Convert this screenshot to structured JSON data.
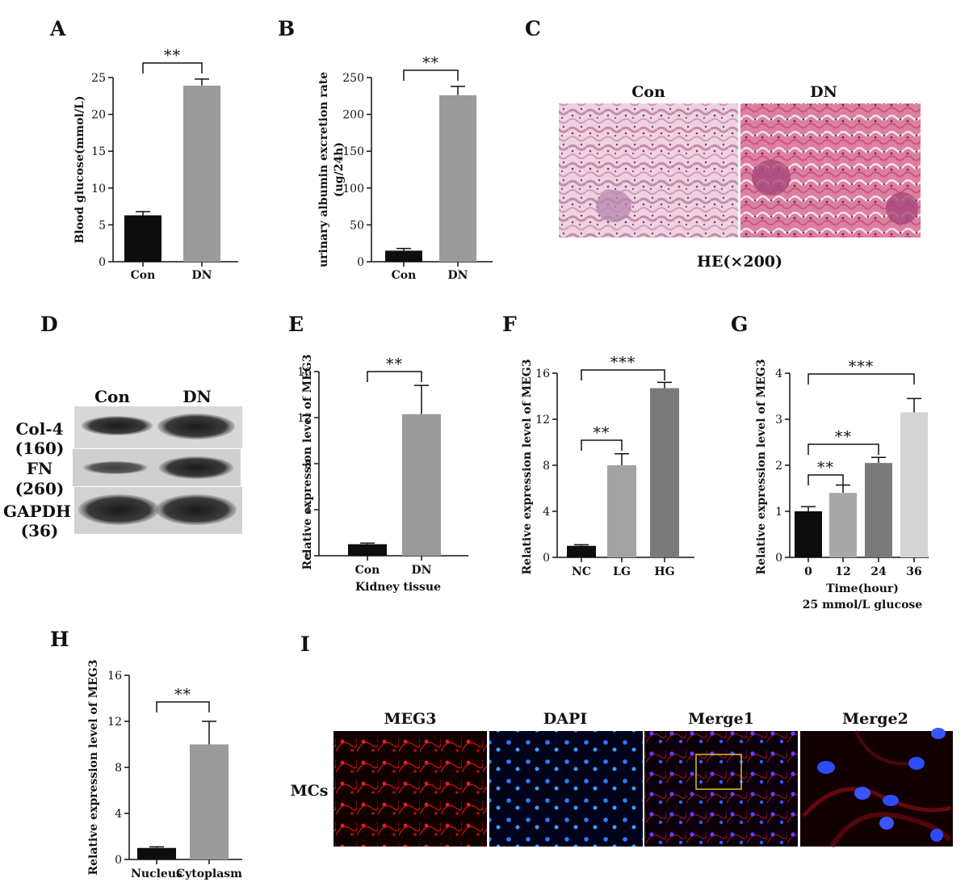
{
  "panels": {
    "A": "A",
    "B": "B",
    "C": "C",
    "D": "D",
    "E": "E",
    "F": "F",
    "G": "G",
    "H": "H",
    "I": "I"
  },
  "chart_data": [
    {
      "id": "A",
      "type": "bar",
      "categories": [
        "Con",
        "DN"
      ],
      "values": [
        6.3,
        23.9
      ],
      "errors": [
        0.5,
        0.9
      ],
      "ylabel": "Blood glucose(mmol/L)",
      "xlabel": "",
      "ylim": [
        0,
        25
      ],
      "yticks": [
        0,
        5,
        10,
        15,
        20,
        25
      ],
      "colors": [
        "#0d0d0d",
        "#9b9b9b"
      ],
      "significance": [
        {
          "from": 0,
          "to": 1,
          "label": "**"
        }
      ]
    },
    {
      "id": "B",
      "type": "bar",
      "categories": [
        "Con",
        "DN"
      ],
      "values": [
        15,
        226
      ],
      "errors": [
        3,
        12
      ],
      "ylabel": "urinary albumin excretion rate (ug/24h)",
      "xlabel": "",
      "ylim": [
        0,
        250
      ],
      "yticks": [
        0,
        50,
        100,
        150,
        200,
        250
      ],
      "colors": [
        "#0d0d0d",
        "#9b9b9b"
      ],
      "significance": [
        {
          "from": 0,
          "to": 1,
          "label": "**"
        }
      ]
    },
    {
      "id": "E",
      "type": "bar",
      "categories": [
        "Con",
        "DN"
      ],
      "values": [
        1.0,
        12.3
      ],
      "errors": [
        0.1,
        2.5
      ],
      "ylabel": "Relative expression level of MEG3",
      "xlabel": "Kidney tissue",
      "ylim": [
        0,
        16
      ],
      "yticks": [
        0,
        4,
        8,
        12,
        16
      ],
      "colors": [
        "#0d0d0d",
        "#9b9b9b"
      ],
      "significance": [
        {
          "from": 0,
          "to": 1,
          "label": "**"
        }
      ]
    },
    {
      "id": "F",
      "type": "bar",
      "categories": [
        "NC",
        "LG",
        "HG"
      ],
      "values": [
        1.0,
        8.0,
        14.7
      ],
      "errors": [
        0.1,
        1.0,
        0.5
      ],
      "ylabel": "Relative expression level of MEG3",
      "xlabel": "",
      "ylim": [
        0,
        16
      ],
      "yticks": [
        0,
        4,
        8,
        12,
        16
      ],
      "colors": [
        "#0d0d0d",
        "#a3a3a3",
        "#7a7a7a"
      ],
      "significance": [
        {
          "from": 0,
          "to": 1,
          "label": "**"
        },
        {
          "from": 0,
          "to": 2,
          "label": "***"
        }
      ]
    },
    {
      "id": "G",
      "type": "bar",
      "categories": [
        "0",
        "12",
        "24",
        "36"
      ],
      "values": [
        1.0,
        1.4,
        2.05,
        3.15
      ],
      "errors": [
        0.1,
        0.17,
        0.12,
        0.3
      ],
      "ylabel": "Relative expression level of MEG3",
      "xlabel": "Time(hour)",
      "xlabel2": "25 mmol/L glucose",
      "ylim": [
        0,
        4
      ],
      "yticks": [
        0,
        1,
        2,
        3,
        4
      ],
      "colors": [
        "#0d0d0d",
        "#a8a8a8",
        "#7a7a7a",
        "#d4d4d4"
      ],
      "significance": [
        {
          "from": 0,
          "to": 1,
          "label": "**"
        },
        {
          "from": 0,
          "to": 2,
          "label": "**"
        },
        {
          "from": 0,
          "to": 3,
          "label": "***"
        }
      ]
    },
    {
      "id": "H",
      "type": "bar",
      "categories": [
        "Nucleus",
        "Cytoplasm"
      ],
      "values": [
        1.0,
        10.0
      ],
      "errors": [
        0.1,
        2.0
      ],
      "ylabel": "Relative expression level of MEG3",
      "xlabel": "",
      "ylim": [
        0,
        16
      ],
      "yticks": [
        0,
        4,
        8,
        12,
        16
      ],
      "colors": [
        "#0d0d0d",
        "#9b9b9b"
      ],
      "significance": [
        {
          "from": 0,
          "to": 1,
          "label": "**"
        }
      ]
    }
  ],
  "histology": {
    "left_label": "Con",
    "right_label": "DN",
    "caption": "HE(×200)"
  },
  "western_blot": {
    "columns": [
      "Con",
      "DN"
    ],
    "rows": [
      {
        "name": "Col-4",
        "weight": "(160)"
      },
      {
        "name": "FN",
        "weight": "(260)"
      },
      {
        "name": "GAPDH",
        "weight": "(36)"
      }
    ]
  },
  "fluorescence": {
    "row_label": "MCs",
    "panels": [
      "MEG3",
      "DAPI",
      "Merge1",
      "Merge2"
    ]
  }
}
